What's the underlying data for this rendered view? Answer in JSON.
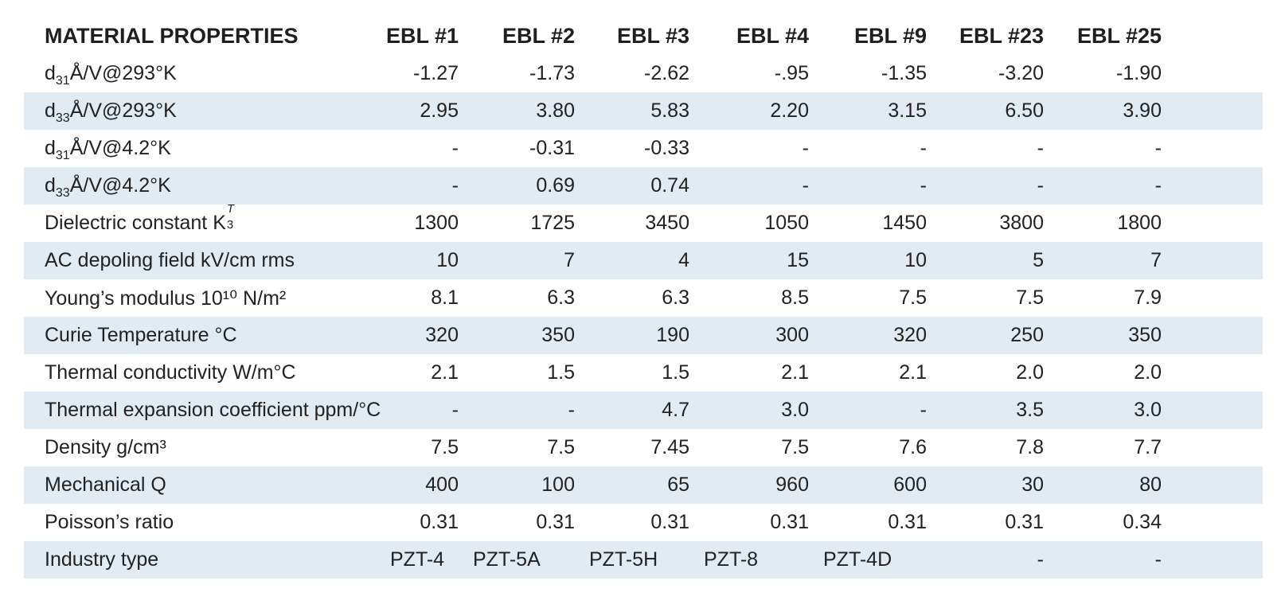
{
  "table": {
    "header": {
      "label": "MATERIAL PROPERTIES",
      "columns": [
        "EBL #1",
        "EBL #2",
        "EBL #3",
        "EBL #4",
        "EBL #9",
        "EBL #23",
        "EBL #25"
      ]
    },
    "rows": [
      {
        "label_prefix": "d",
        "label_sub": "31",
        "label_suffix": "Å/V@293°K",
        "values": [
          "-1.27",
          "-1.73",
          "-2.62",
          "-.95",
          "-1.35",
          "-3.20",
          "-1.90"
        ]
      },
      {
        "label_prefix": "d",
        "label_sub": "33",
        "label_suffix": "Å/V@293°K",
        "values": [
          "2.95",
          "3.80",
          "5.83",
          "2.20",
          "3.15",
          "6.50",
          "3.90"
        ]
      },
      {
        "label_prefix": "d",
        "label_sub": "31",
        "label_suffix": "Å/V@4.2°K",
        "values": [
          "-",
          "-0.31",
          "-0.33",
          "-",
          "-",
          "-",
          "-"
        ]
      },
      {
        "label_prefix": "d",
        "label_sub": "33",
        "label_suffix": "Å/V@4.2°K",
        "values": [
          "-",
          "0.69",
          "0.74",
          "-",
          "-",
          "-",
          "-"
        ]
      },
      {
        "label_prefix": "Dielectric constant K",
        "label_sup": "T",
        "label_sub": "3",
        "values": [
          "1300",
          "1725",
          "3450",
          "1050",
          "1450",
          "3800",
          "1800"
        ]
      },
      {
        "label": "AC depoling field kV/cm rms",
        "values": [
          "10",
          "7",
          "4",
          "15",
          "10",
          "5",
          "7"
        ]
      },
      {
        "label": "Young’s modulus 10¹⁰ N/m²",
        "values": [
          "8.1",
          "6.3",
          "6.3",
          "8.5",
          "7.5",
          "7.5",
          "7.9"
        ]
      },
      {
        "label": "Curie Temperature °C",
        "values": [
          "320",
          "350",
          "190",
          "300",
          "320",
          "250",
          "350"
        ]
      },
      {
        "label": "Thermal conductivity W/m°C",
        "values": [
          "2.1",
          "1.5",
          "1.5",
          "2.1",
          "2.1",
          "2.0",
          "2.0"
        ]
      },
      {
        "label": "Thermal expansion coefficient ppm/°C",
        "values": [
          "-",
          "-",
          "4.7",
          "3.0",
          "-",
          "3.5",
          "3.0"
        ]
      },
      {
        "label": "Density g/cm³",
        "values": [
          "7.5",
          "7.5",
          "7.45",
          "7.5",
          "7.6",
          "7.8",
          "7.7"
        ]
      },
      {
        "label": "Mechanical Q",
        "values": [
          "400",
          "100",
          "65",
          "960",
          "600",
          "30",
          "80"
        ]
      },
      {
        "label": "Poisson’s ratio",
        "values": [
          "0.31",
          "0.31",
          "0.31",
          "0.31",
          "0.31",
          "0.31",
          "0.34"
        ]
      },
      {
        "label": "Industry type",
        "values": [
          "PZT-4",
          "PZT-5A",
          "PZT-5H",
          "PZT-8",
          "PZT-4D",
          "-",
          "-"
        ]
      }
    ]
  },
  "colors": {
    "stripe": "#e3ebf2",
    "text": "#222222"
  }
}
